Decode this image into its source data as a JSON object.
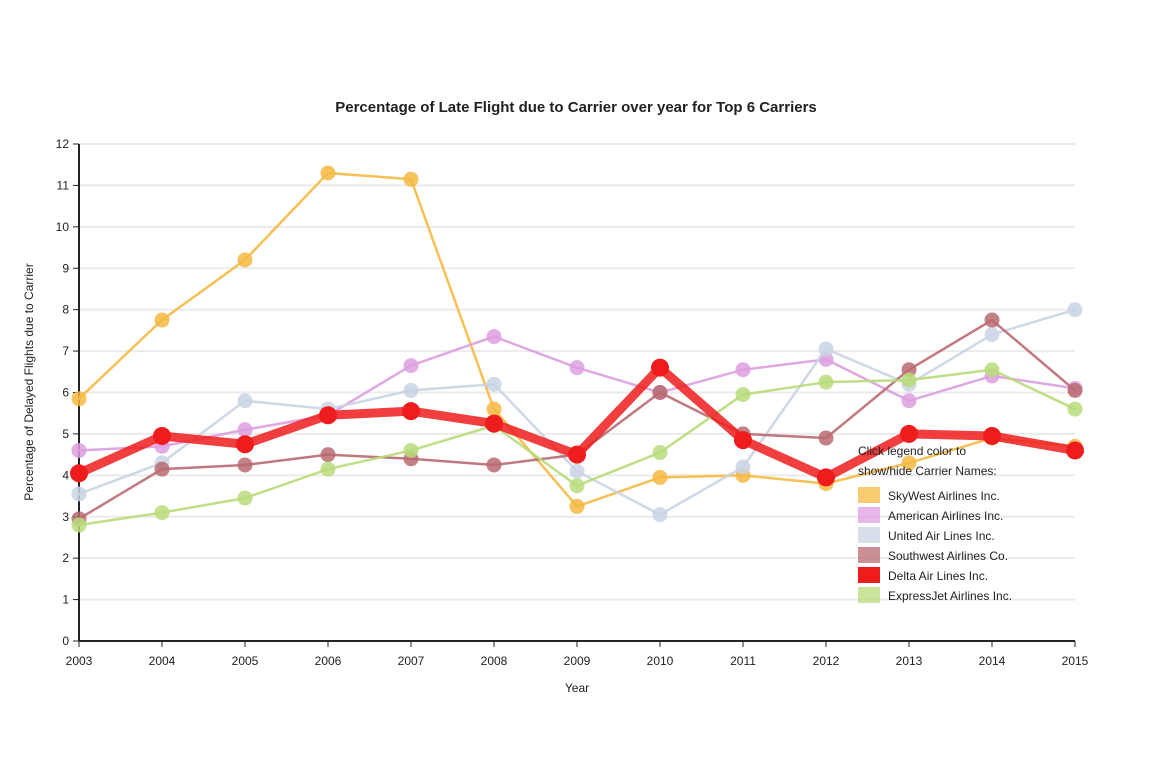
{
  "chart_data": {
    "type": "line",
    "title": "Percentage of Late Flight due to Carrier over year for Top 6 Carriers",
    "xlabel": "Year",
    "ylabel": "Percentage of Delayed Flights due to Carrier",
    "x": [
      "2003",
      "2004",
      "2005",
      "2006",
      "2007",
      "2008",
      "2009",
      "2010",
      "2011",
      "2012",
      "2013",
      "2014",
      "2015"
    ],
    "ylim": [
      0,
      12
    ],
    "yticks": [
      "0",
      "1",
      "2",
      "3",
      "4",
      "5",
      "6",
      "7",
      "8",
      "9",
      "10",
      "11",
      "12"
    ],
    "grid": true,
    "legend_position": "bottom-right",
    "legend_note": "Click legend color to show/hide Carrier Names:",
    "highlighted_series": "Delta Air Lines Inc.",
    "series": [
      {
        "name": "SkyWest Airlines Inc.",
        "color": "#f5b942",
        "values": [
          5.85,
          7.75,
          9.2,
          11.3,
          11.15,
          5.6,
          3.25,
          3.95,
          4.0,
          3.8,
          4.3,
          4.9,
          4.7
        ]
      },
      {
        "name": "American Airlines Inc.",
        "color": "#dd9fe0",
        "values": [
          4.6,
          4.7,
          5.1,
          5.45,
          6.65,
          7.35,
          6.6,
          6.0,
          6.55,
          6.8,
          5.8,
          6.4,
          6.1
        ]
      },
      {
        "name": "United Air Lines Inc.",
        "color": "#c9d4e4",
        "values": [
          3.55,
          4.3,
          5.8,
          5.6,
          6.05,
          6.2,
          4.1,
          3.05,
          4.2,
          7.05,
          6.2,
          7.4,
          8.0
        ]
      },
      {
        "name": "Southwest Airlines Co.",
        "color": "#b96a70",
        "values": [
          2.95,
          4.15,
          4.25,
          4.5,
          4.4,
          4.25,
          4.5,
          6.0,
          5.0,
          4.9,
          6.55,
          7.75,
          6.05
        ]
      },
      {
        "name": "Delta Air Lines Inc.",
        "color": "#ee1c1c",
        "values": [
          4.05,
          4.95,
          4.75,
          5.45,
          5.55,
          5.25,
          4.5,
          6.6,
          4.85,
          3.95,
          5.0,
          4.95,
          4.6
        ]
      },
      {
        "name": "ExpressJet Airlines Inc.",
        "color": "#b8dc7a",
        "values": [
          2.8,
          3.1,
          3.45,
          4.15,
          4.6,
          5.2,
          3.75,
          4.55,
          5.95,
          6.25,
          6.3,
          6.55,
          5.6
        ]
      }
    ]
  }
}
